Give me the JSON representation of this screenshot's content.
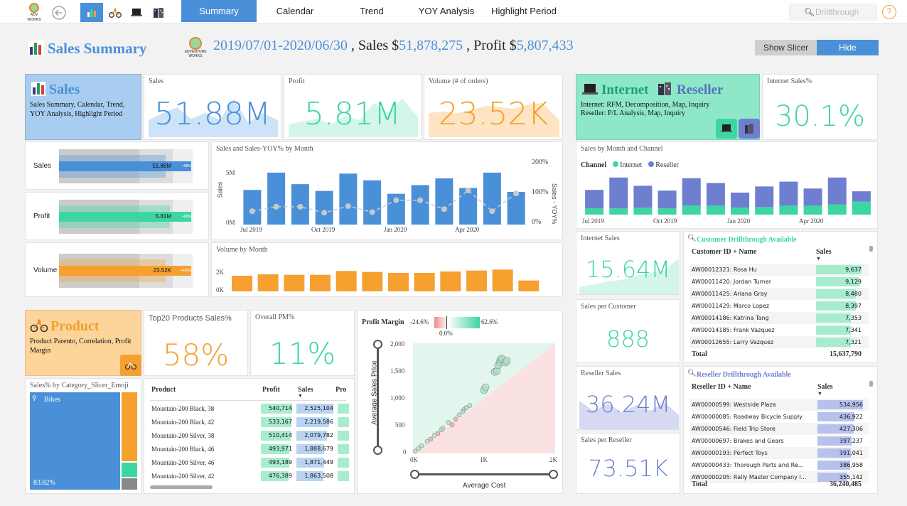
{
  "nav": {
    "tabs": [
      "Summary",
      "Calendar",
      "Trend",
      "YOY Analysis",
      "Highlight Period"
    ],
    "search_placeholder": "Drillthrough",
    "help_label": "?"
  },
  "header": {
    "title": "Sales Summary",
    "date_range": "2019/07/01-2020/06/30",
    "sales_prefix": ", Sales $",
    "sales_value": "51,878,275",
    "profit_prefix": ", Profit $",
    "profit_value": "5,807,433",
    "logo_text": "ADVENTURE WORKS",
    "show_slicer": "Show Slicer",
    "hide": "Hide"
  },
  "sales_card": {
    "title": "Sales",
    "desc": "Sales Summary, Calendar, Trend, YOY Analysis, Highlight Period"
  },
  "kpis": {
    "sales_label": "Sales",
    "sales_value": "51.88M",
    "profit_label": "Profit",
    "profit_value": "5.81M",
    "volume_label": "Volume (# of orders)",
    "volume_value": "23.52K",
    "internet_pct_label": "Internet Sales%",
    "internet_pct_value": "30.1%"
  },
  "channel_card": {
    "internet": "Internet",
    "reseller": "Reseller",
    "desc1": "Internet: RFM, Decomposition, Map, Inquiry",
    "desc2": "Reseller: P/L Analysis, Map, Inquiry"
  },
  "bullets": [
    {
      "label": "Sales",
      "value": "51.88M",
      "yoy": "+58%",
      "fill": 0.8,
      "color": "#4a90d9"
    },
    {
      "label": "Profit",
      "value": "5.81M",
      "yoy": "+66%",
      "fill": 0.83,
      "color": "#3dd6a3"
    },
    {
      "label": "Volume",
      "value": "23.52K",
      "yoy": "+430%",
      "fill": 0.8,
      "color": "#f6a030"
    }
  ],
  "sales_month_chart": {
    "title": "Sales and Sales-YOY% by Month",
    "ylabel": "Sales",
    "y2label": "Sales - YOY%",
    "yticks": [
      "5M",
      "0M"
    ],
    "y2ticks": [
      "200%",
      "100%",
      "0%"
    ],
    "xticks": [
      "Jul 2019",
      "Oct 2019",
      "Jan 2020",
      "Apr 2020"
    ]
  },
  "volume_chart": {
    "title": "Volume by Month",
    "yticks": [
      "2K",
      "0K"
    ]
  },
  "channel_chart": {
    "title": "Sales by Month and Channel",
    "legend_title": "Channel",
    "legend": [
      "Internet",
      "Reseller"
    ],
    "xticks": [
      "Jul 2019",
      "Oct 2019",
      "Jan 2020",
      "Apr 2020"
    ]
  },
  "internet_sales": {
    "label": "Internet Sales",
    "value": "15.64M"
  },
  "sales_per_customer": {
    "label": "Sales per Customer",
    "value": "888"
  },
  "reseller_sales": {
    "label": "Reseller Sales",
    "value": "36.24M"
  },
  "sales_per_reseller": {
    "label": "Sales per Reseller",
    "value": "73.51K"
  },
  "customer_table": {
    "title": "Customer Drillthrough Available",
    "col1": "Customer ID + Name",
    "col2": "Sales",
    "rows": [
      {
        "name": "AW00012321: Rosa Hu",
        "value": "9,637",
        "v": 9637
      },
      {
        "name": "AW00011420: Jordan Turner",
        "value": "9,129",
        "v": 9129
      },
      {
        "name": "AW00011425: Ariana Gray",
        "value": "8,480",
        "v": 8480
      },
      {
        "name": "AW00011429: Marco Lopez",
        "value": "8,397",
        "v": 8397
      },
      {
        "name": "AW00014186: Katrina Tang",
        "value": "7,353",
        "v": 7353
      },
      {
        "name": "AW00014185: Frank Vazquez",
        "value": "7,341",
        "v": 7341
      },
      {
        "name": "AW00012655: Larry Vazquez",
        "value": "7,321",
        "v": 7321
      }
    ],
    "total_label": "Total",
    "total_value": "15,637,790"
  },
  "reseller_table": {
    "title": "Reseller Drillthrough Available",
    "col1": "Reseller ID + Name",
    "col2": "Sales",
    "rows": [
      {
        "name": "AW00000599: Westside Plaza",
        "value": "534,956",
        "v": 534956
      },
      {
        "name": "AW00000085: Roadway Bicycle Supply",
        "value": "436,922",
        "v": 436922
      },
      {
        "name": "AW00000546: Field Trip Store",
        "value": "427,306",
        "v": 427306
      },
      {
        "name": "AW00000697: Brakes and Gears",
        "value": "397,237",
        "v": 397237
      },
      {
        "name": "AW00000193: Perfect Toys",
        "value": "391,041",
        "v": 391041
      },
      {
        "name": "AW00000433: Thorough Parts and Re...",
        "value": "386,958",
        "v": 386958
      },
      {
        "name": "AW00000205: Rally Master Company I...",
        "value": "355,142",
        "v": 355142
      }
    ],
    "total_label": "Total",
    "total_value": "36,240,485"
  },
  "product_card": {
    "title": "Product",
    "desc": "Product Parento, Correlation, Profit Margin"
  },
  "top20": {
    "label": "Top20 Products Sales%",
    "value": "58%"
  },
  "overall_pm": {
    "label": "Overall PM%",
    "value": "11%"
  },
  "treemap": {
    "title": "Sales% by Category_Slicer_Emoji",
    "main_label": "Bikes",
    "main_pct": "83.82%"
  },
  "product_table": {
    "col1": "Product",
    "col2": "Profit",
    "col3": "Sales",
    "col4": "Pro",
    "rows": [
      {
        "name": "Mountain-200 Black, 38",
        "profit": "540,714",
        "sales": "2,525,104",
        "p": 540714,
        "s": 2525104
      },
      {
        "name": "Mountain-200 Black, 42",
        "profit": "533,167",
        "sales": "2,219,586",
        "p": 533167,
        "s": 2219586
      },
      {
        "name": "Mountain-200 Silver, 38",
        "profit": "510,414",
        "sales": "2,079,782",
        "p": 510414,
        "s": 2079782
      },
      {
        "name": "Mountain-200 Black, 46",
        "profit": "493,971",
        "sales": "1,888,679",
        "p": 493971,
        "s": 1888679
      },
      {
        "name": "Mountain-200 Silver, 46",
        "profit": "493,189",
        "sales": "1,871,449",
        "p": 493189,
        "s": 1871449
      },
      {
        "name": "Mountain-200 Silver, 42",
        "profit": "476,389",
        "sales": "1,863,508",
        "p": 476389,
        "s": 1863508
      }
    ]
  },
  "scatter": {
    "title": "Profit Margin",
    "pm_min": "-24.6%",
    "pm_max": "62.6%",
    "pm_zero": "0.0%",
    "xlabel": "Average Cost",
    "ylabel": "Average Sales Price",
    "xticks": [
      "0K",
      "1K",
      "2K"
    ],
    "yticks": [
      "2,000",
      "1,500",
      "1,000",
      "500",
      "0"
    ]
  },
  "chart_data": [
    {
      "type": "bar",
      "title": "Sales and Sales-YOY% by Month",
      "categories": [
        "Jul 2019",
        "Aug 2019",
        "Sep 2019",
        "Oct 2019",
        "Nov 2019",
        "Dec 2019",
        "Jan 2020",
        "Feb 2020",
        "Mar 2020",
        "Apr 2020",
        "May 2020",
        "Jun 2020"
      ],
      "series": [
        {
          "name": "Sales",
          "values": [
            3.6,
            5.4,
            4.2,
            3.5,
            5.3,
            4.6,
            3.2,
            4.1,
            4.8,
            3.8,
            5.4,
            3.4
          ]
        },
        {
          "name": "Sales - YOY%",
          "values": [
            45,
            60,
            60,
            40,
            62,
            42,
            82,
            82,
            52,
            115,
            45,
            105
          ]
        }
      ],
      "ylim": [
        0,
        6.5
      ],
      "y2lim": [
        0,
        200
      ]
    },
    {
      "type": "bar",
      "title": "Volume by Month",
      "categories": [
        "Jul 2019",
        "Aug 2019",
        "Sep 2019",
        "Oct 2019",
        "Nov 2019",
        "Dec 2019",
        "Jan 2020",
        "Feb 2020",
        "Mar 2020",
        "Apr 2020",
        "May 2020",
        "Jun 2020"
      ],
      "values": [
        1.65,
        1.8,
        1.75,
        1.75,
        2.15,
        2.05,
        1.95,
        1.95,
        2.1,
        2.2,
        2.3,
        1.15
      ],
      "ylim": [
        0,
        3
      ]
    },
    {
      "type": "bar",
      "title": "Sales by Month and Channel",
      "categories": [
        "Jul 2019",
        "Aug 2019",
        "Sep 2019",
        "Oct 2019",
        "Nov 2019",
        "Dec 2019",
        "Jan 2020",
        "Feb 2020",
        "Mar 2020",
        "Apr 2020",
        "May 2020",
        "Jun 2020"
      ],
      "series": [
        {
          "name": "Internet",
          "values": [
            0.9,
            0.9,
            1.0,
            0.9,
            1.3,
            1.3,
            1.0,
            1.1,
            1.3,
            1.3,
            1.5,
            1.9
          ]
        },
        {
          "name": "Reseller",
          "values": [
            2.7,
            4.5,
            3.2,
            2.6,
            4.0,
            3.3,
            2.2,
            3.0,
            3.5,
            2.5,
            3.9,
            1.5
          ]
        }
      ],
      "ylim": [
        0,
        6
      ]
    },
    {
      "type": "scatter",
      "title": "Profit Margin",
      "xlabel": "Average Cost",
      "ylabel": "Average Sales Price",
      "xlim": [
        0,
        2000
      ],
      "ylim": [
        0,
        2000
      ],
      "points": [
        [
          30,
          40
        ],
        [
          80,
          90
        ],
        [
          120,
          140
        ],
        [
          200,
          220
        ],
        [
          250,
          260
        ],
        [
          300,
          330
        ],
        [
          350,
          360
        ],
        [
          400,
          430
        ],
        [
          420,
          460
        ],
        [
          500,
          560
        ],
        [
          550,
          520
        ],
        [
          600,
          620
        ],
        [
          650,
          700
        ],
        [
          700,
          760
        ],
        [
          720,
          800
        ],
        [
          750,
          830
        ],
        [
          800,
          870
        ],
        [
          1000,
          1150
        ],
        [
          1020,
          1200
        ],
        [
          1150,
          1480
        ],
        [
          1180,
          1500
        ],
        [
          1200,
          1600
        ],
        [
          1220,
          1650
        ],
        [
          1230,
          1700
        ],
        [
          1250,
          1720
        ],
        [
          1300,
          1650
        ],
        [
          1320,
          1680
        ]
      ]
    }
  ]
}
